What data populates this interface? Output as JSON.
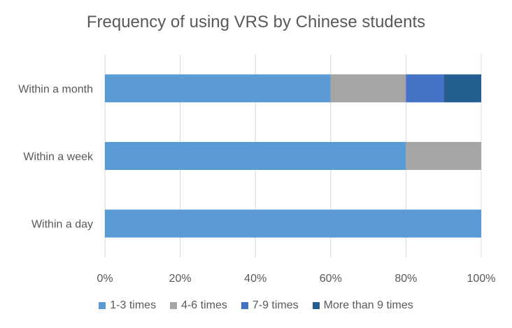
{
  "chart_data": {
    "type": "bar",
    "orientation": "horizontal",
    "stacked": "percent",
    "title": "Frequency of using VRS by Chinese students",
    "categories": [
      "Within a month",
      "Within a week",
      "Within a day"
    ],
    "series": [
      {
        "name": "1-3 times",
        "color": "#5B9BD5",
        "values": [
          60,
          80,
          100
        ]
      },
      {
        "name": "4-6 times",
        "color": "#A5A5A5",
        "values": [
          20,
          20,
          0
        ]
      },
      {
        "name": "7-9 times",
        "color": "#4472C4",
        "values": [
          10,
          0,
          0
        ]
      },
      {
        "name": "More than 9 times",
        "color": "#255E91",
        "values": [
          10,
          0,
          0
        ]
      }
    ],
    "xlim": [
      0,
      100
    ],
    "xticks": [
      "0%",
      "20%",
      "40%",
      "60%",
      "80%",
      "100%"
    ],
    "grid": true,
    "legend_position": "bottom"
  }
}
